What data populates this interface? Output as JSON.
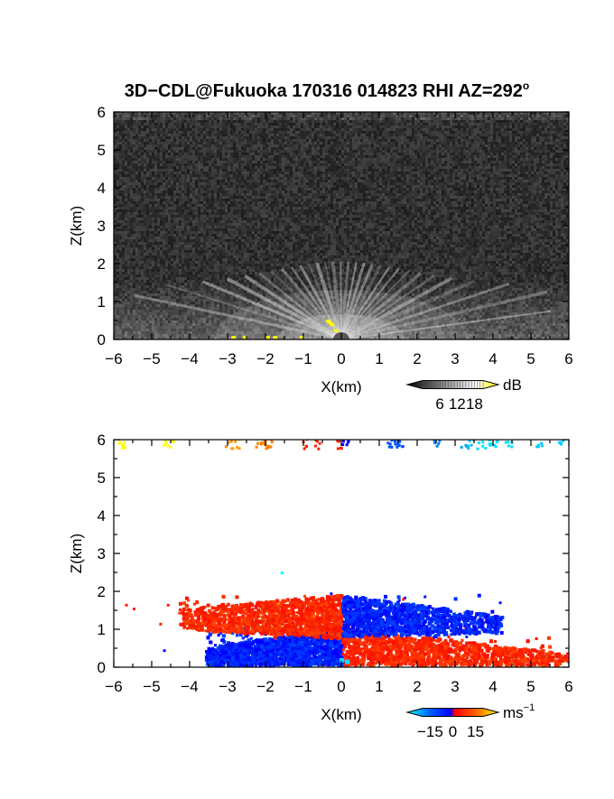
{
  "title": "3D−CDL@Fukuoka 170316 014823 RHI AZ=292",
  "title_superscript": "o",
  "chart_data": [
    {
      "type": "heatmap",
      "variable": "backscatter intensity",
      "xlabel": "X(km)",
      "ylabel": "Z(km)",
      "xlim": [
        -6,
        6
      ],
      "ylim": [
        0,
        6
      ],
      "xticks": [
        "−6",
        "−5",
        "−4",
        "−3",
        "−2",
        "−1",
        "0",
        "1",
        "2",
        "3",
        "4",
        "5",
        "6"
      ],
      "yticks": [
        "0",
        "1",
        "2",
        "3",
        "4",
        "5",
        "6"
      ],
      "colorbar": {
        "unit": "dB",
        "tick_labels": [
          "6",
          "12",
          "18"
        ],
        "tick_values": [
          6,
          12,
          18
        ],
        "range": [
          0,
          21
        ],
        "colors": [
          "#000000",
          "#ffffff",
          "#ffff00"
        ]
      },
      "features": [
        {
          "description": "fan of bright radial beams centered at X=0",
          "x_center": 0,
          "top_z": 2.0
        },
        {
          "description": "bright boundary layer band",
          "x_range": [
            -6,
            6
          ],
          "z_range": [
            0,
            1.6
          ]
        },
        {
          "description": "yellow high-intensity returns near ground",
          "x_range": [
            -3,
            0
          ],
          "z_range": [
            0,
            0.4
          ]
        }
      ]
    },
    {
      "type": "heatmap",
      "variable": "Doppler velocity",
      "xlabel": "X(km)",
      "ylabel": "Z(km)",
      "xlim": [
        -6,
        6
      ],
      "ylim": [
        0,
        6
      ],
      "xticks": [
        "−6",
        "−5",
        "−4",
        "−3",
        "−2",
        "−1",
        "0",
        "1",
        "2",
        "3",
        "4",
        "5",
        "6"
      ],
      "yticks": [
        "0",
        "1",
        "2",
        "3",
        "4",
        "5",
        "6"
      ],
      "colorbar": {
        "unit": "ms",
        "unit_exponent": "−1",
        "tick_labels": [
          "−15",
          "0",
          "15"
        ],
        "tick_values": [
          -15,
          0,
          15
        ],
        "range": [
          -20,
          20
        ],
        "colors": [
          "#00ffff",
          "#0000ff",
          "#ff0000",
          "#ffff00"
        ]
      },
      "regions": [
        {
          "sign": "negative",
          "color": "#0000ff",
          "x_range": [
            -3.5,
            0
          ],
          "z_range": [
            0,
            1.0
          ]
        },
        {
          "sign": "positive",
          "color": "#ff2000",
          "x_range": [
            -4.2,
            0
          ],
          "z_range": [
            0.8,
            1.8
          ]
        },
        {
          "sign": "positive",
          "color": "#ff2000",
          "x_range": [
            0,
            6
          ],
          "z_range": [
            0,
            1.0
          ]
        },
        {
          "sign": "negative",
          "color": "#0000ff",
          "x_range": [
            0,
            4
          ],
          "z_range": [
            0.8,
            1.8
          ]
        },
        {
          "sign": "mixed",
          "description": "sparse returns along top of domain",
          "x_range": [
            -6,
            6
          ],
          "z_range": [
            5.7,
            6.0
          ]
        }
      ]
    }
  ]
}
